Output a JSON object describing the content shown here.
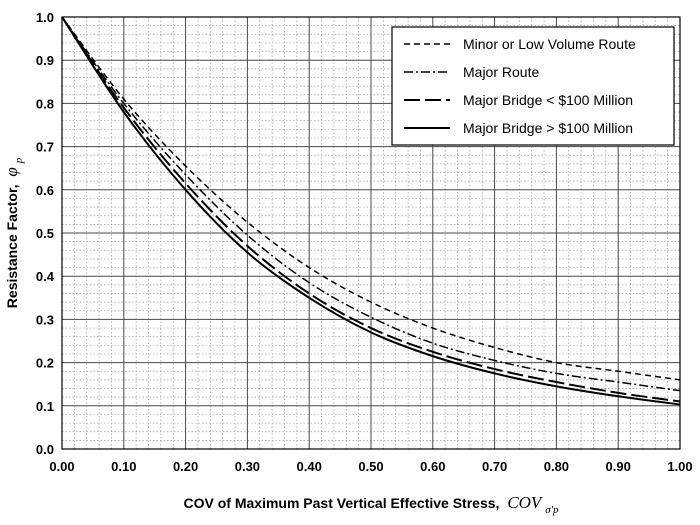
{
  "chart_data": {
    "type": "line",
    "xlabel": "COV of Maximum Past Vertical Effective Stress,",
    "xlabel_symbol": "COV",
    "xlabel_subscript": "σ'p",
    "ylabel": "Resistance Factor,",
    "ylabel_symbol": "φ",
    "ylabel_subscript": "p",
    "xlim": [
      0.0,
      1.0
    ],
    "ylim": [
      0.0,
      1.0
    ],
    "x_ticks": [
      "0.00",
      "0.10",
      "0.20",
      "0.30",
      "0.40",
      "0.50",
      "0.60",
      "0.70",
      "0.80",
      "0.90",
      "1.00"
    ],
    "y_ticks": [
      "0.0",
      "0.1",
      "0.2",
      "0.3",
      "0.4",
      "0.5",
      "0.6",
      "0.7",
      "0.8",
      "0.9",
      "1.0"
    ],
    "grid": true,
    "legend_position": "top-right",
    "x": [
      0.0,
      0.1,
      0.2,
      0.3,
      0.4,
      0.5,
      0.6,
      0.7,
      0.8,
      0.9,
      1.0
    ],
    "series": [
      {
        "name": "Minor or Low Volume Route",
        "style": "short-dash",
        "values": [
          1.0,
          0.81,
          0.655,
          0.525,
          0.42,
          0.34,
          0.28,
          0.235,
          0.2,
          0.18,
          0.16
        ]
      },
      {
        "name": "Major Route",
        "style": "dash-dot",
        "values": [
          1.0,
          0.8,
          0.635,
          0.495,
          0.385,
          0.305,
          0.245,
          0.205,
          0.175,
          0.155,
          0.135
        ]
      },
      {
        "name": "Major Bridge < $100 Million",
        "style": "long-dash",
        "values": [
          1.0,
          0.79,
          0.615,
          0.47,
          0.36,
          0.28,
          0.225,
          0.185,
          0.155,
          0.13,
          0.11
        ]
      },
      {
        "name": "Major Bridge > $100 Million",
        "style": "solid",
        "values": [
          1.0,
          0.78,
          0.6,
          0.455,
          0.35,
          0.27,
          0.215,
          0.175,
          0.145,
          0.122,
          0.103
        ]
      }
    ]
  }
}
